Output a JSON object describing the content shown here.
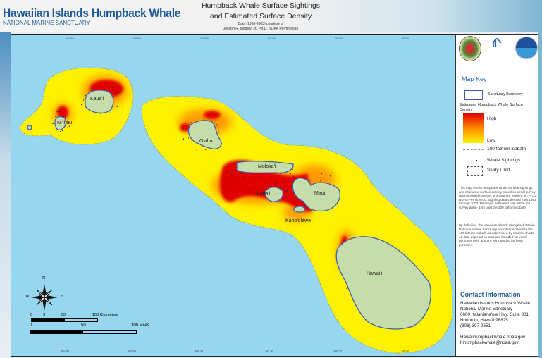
{
  "header": {
    "brand_title": "Hawaiian Islands Humpback Whale",
    "brand_subtitle": "NATIONAL MARINE SANCTUARY",
    "map_title_line1": "Humpback Whale Surface Sightings",
    "map_title_line2": "and Estimated Surface Density",
    "credit_line1": "Data (1993-2003) courtesy of",
    "credit_line2": "Joseph R. Mobley, Jr., Ph.D. NOAA Permit #810"
  },
  "map": {
    "longitude_ticks_top": [
      "160°W",
      "159°W",
      "158°W",
      "157°W",
      "156°W",
      "155°W"
    ],
    "longitude_ticks_bottom": [
      "160°W",
      "159°W",
      "158°W",
      "157°W",
      "156°W",
      "155°W"
    ],
    "islands": [
      "Kaua'i",
      "Ni'ihau",
      "O'ahu",
      "Moloka'i",
      "Lana'i",
      "Maui",
      "Kaho'olawe",
      "Hawai'i"
    ],
    "compass": {
      "n": "N",
      "s": "S",
      "e": "E",
      "w": "W"
    },
    "scale_km": {
      "labels": [
        "0",
        "50",
        "100 Kilometers"
      ]
    },
    "scale_mi": {
      "labels": [
        "0",
        "50",
        "100 Miles"
      ]
    },
    "colors": {
      "ocean": "#96d6ee",
      "land": "#c5dcab",
      "density_low": "#fff200",
      "density_high": "#e00000",
      "boundary": "#3d5fb0"
    }
  },
  "legend": {
    "title": "Map Key",
    "sanctuary_boundary": "Sanctuary Boundary",
    "density_label": "Estimated Humpback Whale Surface Density",
    "high": "High",
    "low": "Low",
    "isobath": "100 fathom isobath",
    "sightings": "Whale Sightings",
    "study_limit": "Study Limit"
  },
  "notes": {
    "paragraph1": "This map shows humpback whale surface sightings and estimated surface density based on aerial survey data provided courtesy of Joseph R. Mobley, Jr., Ph.D. NOAA Permit #810. Sighting data collected from 1993 through 2003. Density is estimated only within the survey area - 1nm past the 100 fathom isobath.",
    "paragraph2": "By definition, the Hawaiian Islands Humpback Whale National Marine Sanctuary boundary extends to the 100 fathom isobath as determined by nautical charts. All data depicted on map are intended for visual purposes only, and are not intended for legal purposes."
  },
  "contact": {
    "heading": "Contact Information",
    "lines": [
      "Hawaiian Islands Humpback Whale",
      "National Marine Sanctuary",
      "6600 Kalaniana'ole Hwy. Suite 301",
      "Honolulu, Hawai'i 96825",
      "(808) 397-2651"
    ],
    "website": "Hawaiihumpbackwhale.noaa.gov",
    "email": "hihumpbackwhale@noaa.gov"
  },
  "logos": [
    "state-seal",
    "sanctuary-whale-tail-logo",
    "noaa-logo"
  ]
}
